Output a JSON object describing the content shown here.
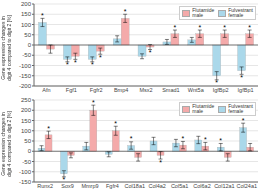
{
  "chart_data": [
    {
      "type": "bar",
      "categories": [
        "Afn",
        "Fgf1",
        "Fgfr2",
        "Bmp4",
        "Msx2",
        "Smad1",
        "Wnt5a",
        "IgfBp2",
        "IgfBp1"
      ],
      "series": [
        {
          "name": "Fulvestrant\nfemale",
          "color": "#AAD8EA",
          "values": [
            110,
            -70,
            -70,
            30,
            -55,
            15,
            25,
            -150,
            -125
          ],
          "errors": [
            20,
            12,
            12,
            15,
            12,
            12,
            12,
            20,
            18
          ],
          "annotations": [
            "*",
            "*",
            "*",
            null,
            null,
            null,
            null,
            "*",
            "*"
          ]
        },
        {
          "name": "Flutamide\nmale",
          "color": "#F4AAAA",
          "values": [
            -20,
            -55,
            -30,
            130,
            -10,
            55,
            55,
            55,
            55
          ],
          "errors": [
            20,
            15,
            15,
            20,
            12,
            18,
            18,
            18,
            18
          ],
          "annotations": [
            null,
            "*",
            "*",
            "*",
            "*",
            "*",
            "*",
            "*",
            "*"
          ]
        }
      ],
      "ylim": [
        -200,
        200
      ],
      "yticks": [
        -200,
        -150,
        -100,
        -50,
        0,
        50,
        100,
        150,
        200
      ],
      "ylabel": "Gene expression changes in\ndigit 4 compared to digit 2 [%]",
      "grid": true,
      "legend": "upper right"
    },
    {
      "type": "bar",
      "categories": [
        "Runx2",
        "Sox9",
        "Mmrp9",
        "Fgfr4",
        "Col18a1",
        "Col4a2",
        "Col5a1",
        "Col6a2",
        "Col12a1",
        "Col24a1"
      ],
      "series": [
        {
          "name": "Fulvestrant\nfemale",
          "color": "#AAD8EA",
          "values": [
            15,
            -110,
            25,
            -15,
            28,
            50,
            40,
            55,
            20,
            115
          ],
          "errors": [
            12,
            15,
            18,
            12,
            18,
            18,
            18,
            18,
            18,
            22
          ],
          "annotations": [
            null,
            "*",
            null,
            null,
            "*",
            null,
            null,
            null,
            "*",
            "*"
          ]
        },
        {
          "name": "Flutamide\nmale",
          "color": "#F4AAAA",
          "values": [
            80,
            -20,
            200,
            100,
            -30,
            -20,
            30,
            25,
            -30,
            20
          ],
          "errors": [
            18,
            12,
            25,
            22,
            18,
            18,
            18,
            18,
            18,
            18
          ],
          "annotations": [
            "*",
            null,
            "*",
            "*",
            null,
            "*",
            "*",
            "*",
            null,
            null
          ]
        }
      ],
      "ylim": [
        -150,
        250
      ],
      "yticks": [
        -150,
        -100,
        -50,
        0,
        50,
        100,
        150,
        200,
        250
      ],
      "ylabel": "Gene expression changes in\ndigit 4 compared to digit 2 [%]",
      "grid": true,
      "legend": "upper right"
    }
  ]
}
